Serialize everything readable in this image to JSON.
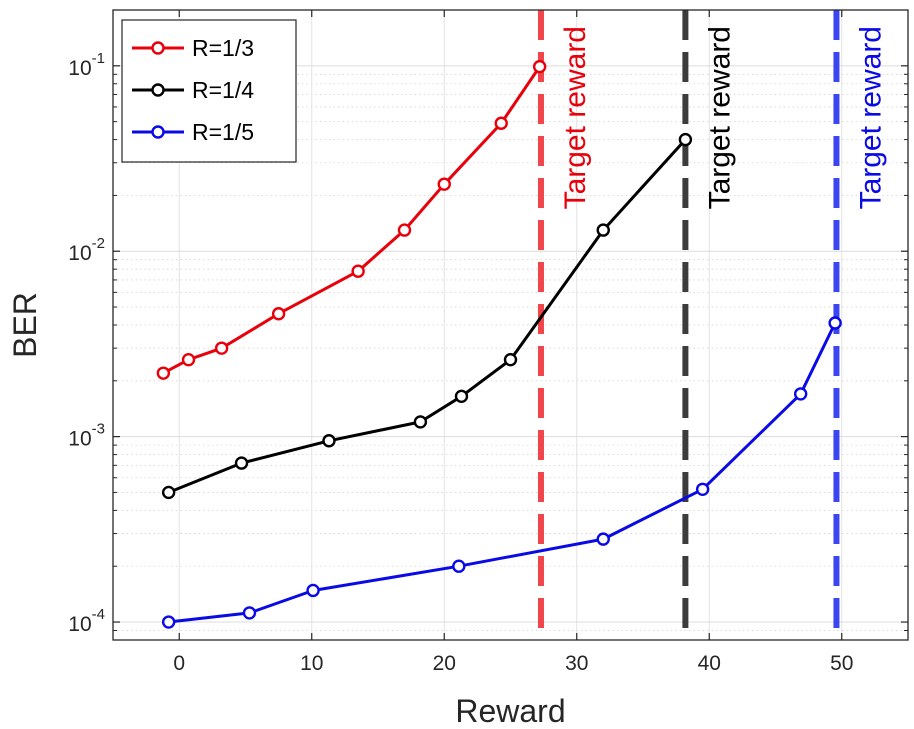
{
  "chart_data": {
    "type": "line",
    "title": "",
    "xlabel": "Reward",
    "ylabel": "BER",
    "xlim": [
      -5,
      55
    ],
    "ylim": [
      8e-05,
      0.2
    ],
    "yscale": "log",
    "grid": true,
    "minor_grid": true,
    "legend_position": "top-left",
    "x_ticks": [
      0,
      10,
      20,
      30,
      40,
      50
    ],
    "x_tick_labels": [
      "0",
      "10",
      "20",
      "30",
      "40",
      "50"
    ],
    "y_ticks": [
      0.0001,
      0.001,
      0.01,
      0.1
    ],
    "y_tick_labels": [
      {
        "base": "10",
        "exp": "-4"
      },
      {
        "base": "10",
        "exp": "-3"
      },
      {
        "base": "10",
        "exp": "-2"
      },
      {
        "base": "10",
        "exp": "-1"
      }
    ],
    "series": [
      {
        "name": "R=1/3",
        "color": "#e8000b",
        "x": [
          -1.2,
          0.7,
          3.2,
          7.5,
          13.5,
          17,
          20,
          24.3,
          27.2
        ],
        "y": [
          0.0022,
          0.0026,
          0.003,
          0.0046,
          0.0078,
          0.013,
          0.023,
          0.049,
          0.099
        ]
      },
      {
        "name": "R=1/4",
        "color": "#000000",
        "x": [
          -0.8,
          4.7,
          11.3,
          18.2,
          21.3,
          25,
          32,
          38.2
        ],
        "y": [
          0.0005,
          0.00072,
          0.00095,
          0.0012,
          0.00165,
          0.0026,
          0.013,
          0.04
        ]
      },
      {
        "name": "R=1/5",
        "color": "#0a0ae6",
        "x": [
          -0.8,
          5.3,
          10.1,
          21.1,
          32,
          39.5,
          46.9,
          49.5
        ],
        "y": [
          0.0001,
          0.000112,
          0.000148,
          0.0002,
          0.00028,
          0.00052,
          0.0017,
          0.0041
        ]
      }
    ],
    "target_lines": [
      {
        "x": 27.3,
        "color": "#f0464b",
        "label": "Target reward",
        "label_color": "#e8000b"
      },
      {
        "x": 38.2,
        "color": "#3c3c3c",
        "label": "Target reward",
        "label_color": "#000000"
      },
      {
        "x": 49.6,
        "color": "#3c46f0",
        "label": "Target reward",
        "label_color": "#0a0ae6"
      }
    ]
  }
}
